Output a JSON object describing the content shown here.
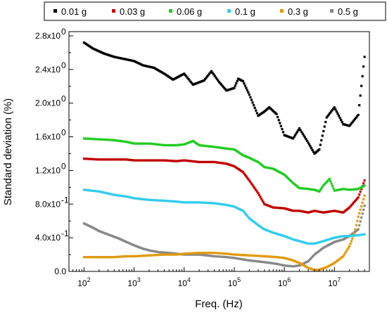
{
  "chart_data": {
    "type": "scatter",
    "xlabel": "Freq. (Hz)",
    "ylabel": "Standard deviation (%)",
    "x_scale": "log",
    "xlim": [
      50,
      50000000
    ],
    "ylim": [
      0,
      2.85
    ],
    "grid": false,
    "legend_position": "top",
    "x_ticks": [
      {
        "value": 100,
        "base": "10",
        "exp": "2"
      },
      {
        "value": 1000,
        "base": "10",
        "exp": "3"
      },
      {
        "value": 10000,
        "base": "10",
        "exp": "4"
      },
      {
        "value": 100000,
        "base": "10",
        "exp": "5"
      },
      {
        "value": 1000000,
        "base": "10",
        "exp": "6"
      },
      {
        "value": 10000000,
        "base": "10",
        "exp": "7"
      }
    ],
    "y_ticks": [
      {
        "value": 0.0,
        "label": "0.0"
      },
      {
        "value": 0.4,
        "label": "4.0x10",
        "exp": "-1"
      },
      {
        "value": 0.8,
        "label": "8.0x10",
        "exp": "-1"
      },
      {
        "value": 1.2,
        "label": "1.2x10",
        "exp": "0"
      },
      {
        "value": 1.6,
        "label": "1.6x10",
        "exp": "0"
      },
      {
        "value": 2.0,
        "label": "2.0x10",
        "exp": "0"
      },
      {
        "value": 2.4,
        "label": "2.4x10",
        "exp": "0"
      },
      {
        "value": 2.8,
        "label": "2.8x10",
        "exp": "0"
      }
    ],
    "series": [
      {
        "name": "0.01 g",
        "color": "#000000",
        "x": [
          100,
          150,
          250,
          400,
          700,
          1000,
          1500,
          2500,
          4000,
          6000,
          10000,
          15000,
          25000,
          35000,
          50000,
          70000,
          100000,
          120000,
          150000,
          200000,
          300000,
          400000,
          500000,
          700000,
          1000000,
          1500000,
          2000000,
          3000000,
          4000000,
          5000000,
          7000000,
          10000000,
          15000000,
          20000000,
          30000000,
          40000000
        ],
        "y": [
          2.72,
          2.65,
          2.59,
          2.55,
          2.52,
          2.5,
          2.45,
          2.42,
          2.35,
          2.28,
          2.35,
          2.22,
          2.27,
          2.38,
          2.25,
          2.15,
          2.18,
          2.29,
          2.26,
          2.1,
          1.85,
          1.9,
          1.95,
          1.87,
          1.62,
          1.58,
          1.7,
          1.53,
          1.4,
          1.45,
          1.83,
          1.95,
          1.75,
          1.73,
          1.86,
          2.55
        ]
      },
      {
        "name": "0.03 g",
        "color": "#c00000",
        "x": [
          100,
          200,
          400,
          700,
          1000,
          2000,
          4000,
          7000,
          10000,
          20000,
          40000,
          70000,
          100000,
          150000,
          200000,
          300000,
          400000,
          600000,
          1000000,
          1500000,
          2000000,
          3000000,
          4000000,
          6000000,
          10000000,
          15000000,
          20000000,
          30000000,
          40000000
        ],
        "y": [
          1.34,
          1.33,
          1.33,
          1.33,
          1.32,
          1.32,
          1.32,
          1.31,
          1.32,
          1.3,
          1.3,
          1.28,
          1.25,
          1.18,
          1.08,
          0.93,
          0.8,
          0.76,
          0.75,
          0.72,
          0.72,
          0.7,
          0.72,
          0.7,
          0.72,
          0.7,
          0.76,
          0.88,
          1.08
        ]
      },
      {
        "name": "0.06 g",
        "color": "#22cc22",
        "x": [
          100,
          200,
          400,
          700,
          1000,
          2000,
          4000,
          7000,
          10000,
          15000,
          20000,
          40000,
          70000,
          100000,
          150000,
          200000,
          300000,
          400000,
          600000,
          1000000,
          1500000,
          2000000,
          3000000,
          4000000,
          5000000,
          6000000,
          8000000,
          10000000,
          15000000,
          20000000,
          30000000,
          40000000
        ],
        "y": [
          1.58,
          1.57,
          1.56,
          1.54,
          1.52,
          1.52,
          1.5,
          1.5,
          1.51,
          1.55,
          1.5,
          1.48,
          1.46,
          1.45,
          1.38,
          1.35,
          1.3,
          1.24,
          1.22,
          1.15,
          1.05,
          0.99,
          0.98,
          0.97,
          0.95,
          1.02,
          1.1,
          0.96,
          0.98,
          0.97,
          0.98,
          1.02
        ]
      },
      {
        "name": "0.1 g",
        "color": "#33ccee",
        "x": [
          100,
          200,
          400,
          700,
          1000,
          2000,
          4000,
          7000,
          10000,
          20000,
          40000,
          70000,
          100000,
          150000,
          200000,
          300000,
          400000,
          600000,
          1000000,
          1500000,
          2000000,
          3000000,
          4000000,
          6000000,
          10000000,
          15000000,
          20000000,
          30000000,
          40000000
        ],
        "y": [
          0.97,
          0.95,
          0.91,
          0.89,
          0.87,
          0.85,
          0.84,
          0.83,
          0.82,
          0.82,
          0.81,
          0.79,
          0.77,
          0.72,
          0.63,
          0.55,
          0.5,
          0.46,
          0.42,
          0.38,
          0.36,
          0.33,
          0.33,
          0.36,
          0.4,
          0.42,
          0.42,
          0.43,
          0.44
        ]
      },
      {
        "name": "0.3 g",
        "color": "#e09a10",
        "x": [
          100,
          200,
          400,
          700,
          1000,
          2000,
          4000,
          7000,
          10000,
          20000,
          40000,
          70000,
          100000,
          200000,
          400000,
          700000,
          1000000,
          1500000,
          2000000,
          2500000,
          3000000,
          4000000,
          5000000,
          7000000,
          10000000,
          15000000,
          20000000,
          25000000,
          30000000,
          40000000
        ],
        "y": [
          0.17,
          0.17,
          0.17,
          0.18,
          0.18,
          0.19,
          0.2,
          0.2,
          0.21,
          0.22,
          0.22,
          0.21,
          0.2,
          0.19,
          0.18,
          0.17,
          0.16,
          0.13,
          0.1,
          0.07,
          0.04,
          0.02,
          0.02,
          0.05,
          0.1,
          0.18,
          0.3,
          0.45,
          0.65,
          0.9
        ]
      },
      {
        "name": "0.5 g",
        "color": "#888888",
        "x": [
          100,
          150,
          200,
          300,
          500,
          700,
          1000,
          1500,
          2000,
          3000,
          5000,
          7000,
          10000,
          20000,
          40000,
          70000,
          100000,
          200000,
          400000,
          700000,
          1000000,
          1500000,
          2000000,
          3000000,
          4000000,
          6000000,
          10000000,
          15000000,
          20000000,
          30000000,
          40000000
        ],
        "y": [
          0.57,
          0.52,
          0.48,
          0.44,
          0.39,
          0.35,
          0.31,
          0.27,
          0.25,
          0.23,
          0.22,
          0.21,
          0.2,
          0.2,
          0.18,
          0.17,
          0.16,
          0.13,
          0.11,
          0.09,
          0.07,
          0.06,
          0.07,
          0.12,
          0.2,
          0.28,
          0.35,
          0.38,
          0.42,
          0.5,
          0.78
        ]
      }
    ]
  }
}
